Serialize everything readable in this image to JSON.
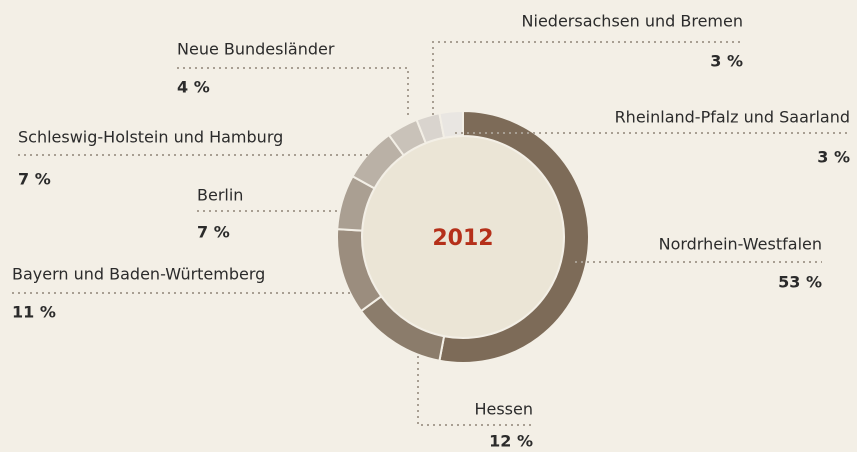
{
  "chart_data": {
    "type": "donut",
    "title": "2012",
    "categories": [
      "Nordrhein-Westfalen",
      "Hessen",
      "Bayern und Baden-Würtemberg",
      "Berlin",
      "Schleswig-Holstein und Hamburg",
      "Neue Bundesländer",
      "Niedersachsen und Bremen",
      "Rheinland-Pfalz und Saarland"
    ],
    "values": [
      53,
      12,
      11,
      7,
      7,
      4,
      3,
      3
    ],
    "value_labels": [
      "53 %",
      "12 %",
      "11 %",
      "7 %",
      "7 %",
      "4 %",
      "3 %",
      "3 %"
    ],
    "colors": [
      "#7d6b58",
      "#8b7c6b",
      "#9b8d7e",
      "#aa9f92",
      "#bab1a6",
      "#c9c2b9",
      "#d9d4ce",
      "#e9e6e2"
    ]
  }
}
